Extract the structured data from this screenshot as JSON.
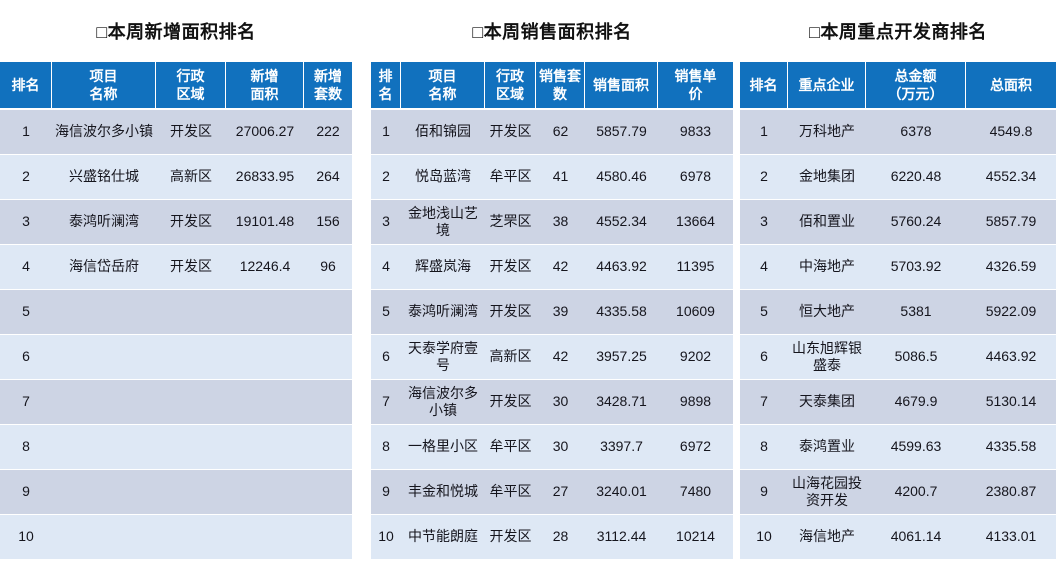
{
  "colors": {
    "header_bg": "#1171be",
    "header_text": "#ffffff",
    "row_odd_bg": "#cdd4e4",
    "row_even_bg": "#dee8f5",
    "body_text": "#15151d",
    "title_text": "#111111",
    "page_bg": "#ffffff"
  },
  "tables": [
    {
      "title": "□本周新增面积排名",
      "headers": [
        "排名",
        "项目\n名称",
        "行政\n区域",
        "新增\n面积",
        "新增\n套数"
      ],
      "rows": [
        [
          "1",
          "海信波尔多小镇",
          "开发区",
          "27006.27",
          "222"
        ],
        [
          "2",
          "兴盛铭仕城",
          "高新区",
          "26833.95",
          "264"
        ],
        [
          "3",
          "泰鸿听澜湾",
          "开发区",
          "19101.48",
          "156"
        ],
        [
          "4",
          "海信岱岳府",
          "开发区",
          "12246.4",
          "96"
        ],
        [
          "5",
          "",
          "",
          "",
          ""
        ],
        [
          "6",
          "",
          "",
          "",
          ""
        ],
        [
          "7",
          "",
          "",
          "",
          ""
        ],
        [
          "8",
          "",
          "",
          "",
          ""
        ],
        [
          "9",
          "",
          "",
          "",
          ""
        ],
        [
          "10",
          "",
          "",
          "",
          ""
        ]
      ]
    },
    {
      "title": "□本周销售面积排名",
      "headers": [
        "排\n名",
        "项目\n名称",
        "行政\n区域",
        "销售套\n数",
        "销售面积",
        "销售单\n价"
      ],
      "rows": [
        [
          "1",
          "佰和锦园",
          "开发区",
          "62",
          "5857.79",
          "9833"
        ],
        [
          "2",
          "悦岛蓝湾",
          "牟平区",
          "41",
          "4580.46",
          "6978"
        ],
        [
          "3",
          "金地浅山艺境",
          "芝罘区",
          "38",
          "4552.34",
          "13664"
        ],
        [
          "4",
          "辉盛岚海",
          "开发区",
          "42",
          "4463.92",
          "11395"
        ],
        [
          "5",
          "泰鸿听澜湾",
          "开发区",
          "39",
          "4335.58",
          "10609"
        ],
        [
          "6",
          "天泰学府壹号",
          "高新区",
          "42",
          "3957.25",
          "9202"
        ],
        [
          "7",
          "海信波尔多小镇",
          "开发区",
          "30",
          "3428.71",
          "9898"
        ],
        [
          "8",
          "一格里小区",
          "牟平区",
          "30",
          "3397.7",
          "6972"
        ],
        [
          "9",
          "丰金和悦城",
          "牟平区",
          "27",
          "3240.01",
          "7480"
        ],
        [
          "10",
          "中节能朗庭",
          "开发区",
          "28",
          "3112.44",
          "10214"
        ]
      ]
    },
    {
      "title": "□本周重点开发商排名",
      "headers": [
        "排名",
        "重点企业",
        "总金额\n（万元）",
        "总面积"
      ],
      "rows": [
        [
          "1",
          "万科地产",
          "6378",
          "4549.8"
        ],
        [
          "2",
          "金地集团",
          "6220.48",
          "4552.34"
        ],
        [
          "3",
          "佰和置业",
          "5760.24",
          "5857.79"
        ],
        [
          "4",
          "中海地产",
          "5703.92",
          "4326.59"
        ],
        [
          "5",
          "恒大地产",
          "5381",
          "5922.09"
        ],
        [
          "6",
          "山东旭辉银盛泰",
          "5086.5",
          "4463.92"
        ],
        [
          "7",
          "天泰集团",
          "4679.9",
          "5130.14"
        ],
        [
          "8",
          "泰鸿置业",
          "4599.63",
          "4335.58"
        ],
        [
          "9",
          "山海花园投资开发",
          "4200.7",
          "2380.87"
        ],
        [
          "10",
          "海信地产",
          "4061.14",
          "4133.01"
        ]
      ]
    }
  ]
}
